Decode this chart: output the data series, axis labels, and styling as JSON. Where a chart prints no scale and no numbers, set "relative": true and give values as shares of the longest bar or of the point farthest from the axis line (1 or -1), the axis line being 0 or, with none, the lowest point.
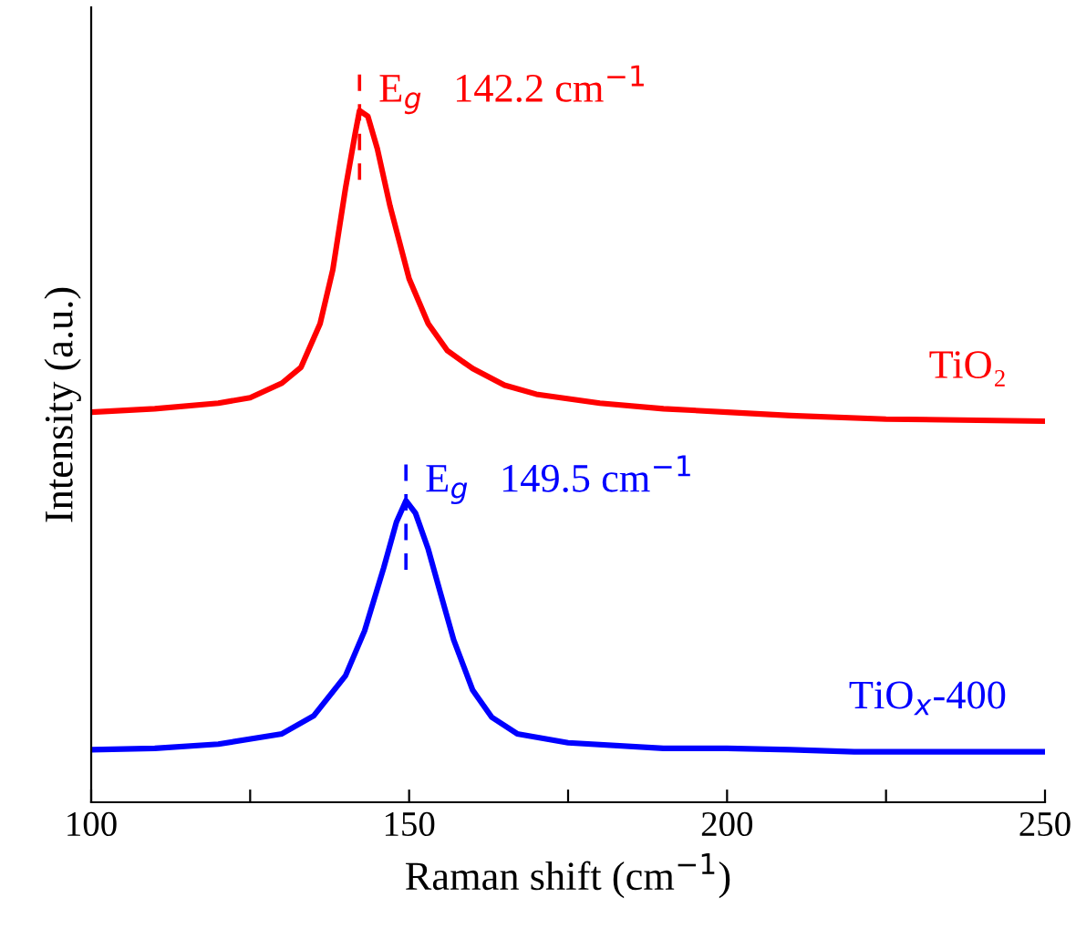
{
  "chart_data": {
    "type": "line",
    "relative": true,
    "xlabel": "Raman shift (cm$^{−1}$)",
    "ylabel": "Intensity (a.u.)",
    "xlim": [
      100,
      250
    ],
    "xticks": [
      100,
      {
        "value": 125,
        "label": null
      },
      150,
      {
        "value": 175,
        "label": null
      },
      200,
      {
        "value": 225,
        "label": null
      },
      250
    ],
    "tick_labels": "x",
    "grid": false,
    "legend": false,
    "marker": "none",
    "line_style": "solid",
    "series": [
      {
        "name": "TiO₂",
        "color": "#ff0000",
        "x": [
          100,
          110,
          120,
          125,
          130,
          133,
          136,
          138,
          140,
          141.5,
          142.2,
          143.5,
          145,
          147,
          150,
          153,
          156,
          160,
          165,
          170,
          180,
          190,
          200,
          210,
          225,
          250
        ],
        "values": [
          0.564,
          0.569,
          0.577,
          0.585,
          0.606,
          0.629,
          0.692,
          0.77,
          0.888,
          0.966,
          1.0,
          0.992,
          0.945,
          0.862,
          0.757,
          0.692,
          0.653,
          0.627,
          0.603,
          0.59,
          0.577,
          0.569,
          0.564,
          0.559,
          0.554,
          0.551
        ]
      },
      {
        "name": "TiO$_{x}$-400",
        "color": "#0000ff",
        "x": [
          100,
          110,
          120,
          130,
          135,
          140,
          143,
          146,
          148,
          149.5,
          151,
          153,
          155,
          157,
          160,
          163,
          167,
          175,
          190,
          200,
          210,
          220,
          250
        ],
        "values": [
          0.076,
          0.078,
          0.084,
          0.099,
          0.125,
          0.183,
          0.248,
          0.339,
          0.405,
          0.436,
          0.418,
          0.366,
          0.3,
          0.235,
          0.162,
          0.123,
          0.099,
          0.086,
          0.078,
          0.078,
          0.076,
          0.073,
          0.073
        ]
      }
    ],
    "ref_lines": [
      {
        "axis": "x",
        "value": 142.2,
        "label": "E$_{g}$   142.2 cm$^{−1}$",
        "color": "#ff0000",
        "line_style": "dashed"
      },
      {
        "axis": "x",
        "value": 149.5,
        "label": "E$_{g}$   149.5 cm$^{−1}$",
        "color": "#0000ff",
        "line_style": "dashed"
      }
    ]
  }
}
